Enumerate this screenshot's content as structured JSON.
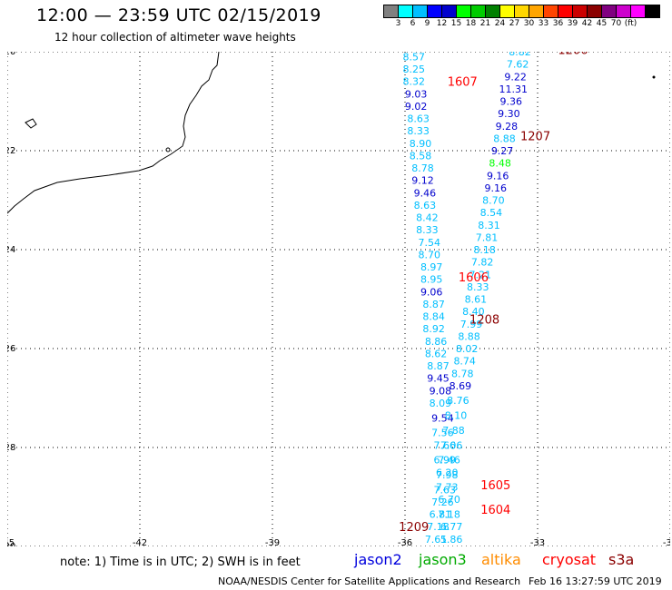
{
  "header": {
    "title": "12:00 — 23:59 UTC 02/15/2019",
    "subtitle": "12 hour collection of altimeter wave heights"
  },
  "color_legend": {
    "swatches": [
      "#808080",
      "#00ffff",
      "#00bfff",
      "#0000ff",
      "#0000cd",
      "#00ff00",
      "#00cc00",
      "#008000",
      "#ffff00",
      "#ffd700",
      "#ffa500",
      "#ff4500",
      "#ff0000",
      "#cc0000",
      "#8b0000",
      "#800080",
      "#cc00cc",
      "#ff00ff",
      "#000000"
    ],
    "labels": [
      "3",
      "6",
      "9",
      "12",
      "15",
      "18",
      "21",
      "24",
      "27",
      "30",
      "33",
      "36",
      "39",
      "42",
      "45",
      "70",
      "(ft)"
    ]
  },
  "footer": {
    "note": "note: 1) Time is in UTC; 2) SWH is in feet",
    "missions": [
      {
        "name": "jason2",
        "color": "#0000dd"
      },
      {
        "name": "jason3",
        "color": "#00aa00"
      },
      {
        "name": "altika",
        "color": "#ff8c00"
      },
      {
        "name": "cryosat",
        "color": "#ff0000"
      },
      {
        "name": "s3a",
        "color": "#8b0000"
      }
    ],
    "credit": "NOAA/NESDIS Center for Satellite Applications and Research",
    "timestamp": "Feb 16 13:27:59 UTC 2019"
  },
  "chart_data": {
    "type": "scatter",
    "x_range": [
      -45,
      -30
    ],
    "y_range": [
      -30,
      -20
    ],
    "x_ticks": [
      -45,
      -42,
      -39,
      -36,
      -33,
      -30
    ],
    "y_ticks": [
      -20,
      -22,
      -24,
      -26,
      -28,
      -30
    ],
    "grid": true,
    "points": [
      {
        "lon": -35.8,
        "lat": -20.1,
        "v": "8.57",
        "c": "#00bfff"
      },
      {
        "lon": -35.8,
        "lat": -20.35,
        "v": "8.25",
        "c": "#00bfff"
      },
      {
        "lon": -35.8,
        "lat": -20.6,
        "v": "8.32",
        "c": "#00bfff"
      },
      {
        "lon": -35.75,
        "lat": -20.85,
        "v": "9.03",
        "c": "#0000cd"
      },
      {
        "lon": -35.75,
        "lat": -21.1,
        "v": "9.02",
        "c": "#0000cd"
      },
      {
        "lon": -35.7,
        "lat": -21.35,
        "v": "8.63",
        "c": "#00bfff"
      },
      {
        "lon": -35.7,
        "lat": -21.6,
        "v": "8.33",
        "c": "#00bfff"
      },
      {
        "lon": -35.65,
        "lat": -21.85,
        "v": "8.90",
        "c": "#00bfff"
      },
      {
        "lon": -35.65,
        "lat": -22.1,
        "v": "8.58",
        "c": "#00bfff"
      },
      {
        "lon": -35.6,
        "lat": -22.35,
        "v": "8.78",
        "c": "#00bfff"
      },
      {
        "lon": -35.6,
        "lat": -22.6,
        "v": "9.12",
        "c": "#0000cd"
      },
      {
        "lon": -35.55,
        "lat": -22.85,
        "v": "9.46",
        "c": "#0000cd"
      },
      {
        "lon": -35.55,
        "lat": -23.1,
        "v": "8.63",
        "c": "#00bfff"
      },
      {
        "lon": -35.5,
        "lat": -23.35,
        "v": "8.42",
        "c": "#00bfff"
      },
      {
        "lon": -35.5,
        "lat": -23.6,
        "v": "8.33",
        "c": "#00bfff"
      },
      {
        "lon": -35.45,
        "lat": -23.85,
        "v": "7.54",
        "c": "#00bfff"
      },
      {
        "lon": -35.45,
        "lat": -24.1,
        "v": "8.70",
        "c": "#00bfff"
      },
      {
        "lon": -35.4,
        "lat": -24.35,
        "v": "8.97",
        "c": "#00bfff"
      },
      {
        "lon": -35.4,
        "lat": -24.6,
        "v": "8.95",
        "c": "#00bfff"
      },
      {
        "lon": -35.4,
        "lat": -24.85,
        "v": "9.06",
        "c": "#0000cd"
      },
      {
        "lon": -35.35,
        "lat": -25.1,
        "v": "8.87",
        "c": "#00bfff"
      },
      {
        "lon": -35.35,
        "lat": -25.35,
        "v": "8.84",
        "c": "#00bfff"
      },
      {
        "lon": -35.35,
        "lat": -25.6,
        "v": "8.92",
        "c": "#00bfff"
      },
      {
        "lon": -35.3,
        "lat": -25.85,
        "v": "8.86",
        "c": "#00bfff"
      },
      {
        "lon": -35.3,
        "lat": -26.1,
        "v": "8.62",
        "c": "#00bfff"
      },
      {
        "lon": -35.25,
        "lat": -26.35,
        "v": "8.87",
        "c": "#00bfff"
      },
      {
        "lon": -35.25,
        "lat": -26.6,
        "v": "9.45",
        "c": "#0000cd"
      },
      {
        "lon": -35.2,
        "lat": -26.85,
        "v": "9.08",
        "c": "#0000cd"
      },
      {
        "lon": -35.2,
        "lat": -27.1,
        "v": "8.09",
        "c": "#00bfff"
      },
      {
        "lon": -35.15,
        "lat": -27.4,
        "v": "9.54",
        "c": "#0000cd"
      },
      {
        "lon": -35.15,
        "lat": -27.7,
        "v": "7.56",
        "c": "#00bfff"
      },
      {
        "lon": -35.1,
        "lat": -27.95,
        "v": "7.66",
        "c": "#00bfff"
      },
      {
        "lon": -35.1,
        "lat": -28.25,
        "v": "6.99",
        "c": "#00bfff"
      },
      {
        "lon": -35.05,
        "lat": -28.5,
        "v": "6.20",
        "c": "#00bfff"
      },
      {
        "lon": -35.05,
        "lat": -28.8,
        "v": "7.73",
        "c": "#00bfff"
      },
      {
        "lon": -35.0,
        "lat": -29.05,
        "v": "6.70",
        "c": "#00bfff"
      },
      {
        "lon": -35.0,
        "lat": -29.35,
        "v": "7.18",
        "c": "#00bfff"
      },
      {
        "lon": -34.95,
        "lat": -29.6,
        "v": "6.77",
        "c": "#00bfff"
      },
      {
        "lon": -34.95,
        "lat": -29.85,
        "v": "5.86",
        "c": "#00bfff"
      },
      {
        "lon": -34.9,
        "lat": -30.1,
        "v": "6.55",
        "c": "#00bfff"
      },
      {
        "lon": -34.9,
        "lat": -30.35,
        "v": "6.24",
        "c": "#00bfff"
      },
      {
        "lon": -34.85,
        "lat": -30.6,
        "v": "4.90",
        "c": "#00ffff"
      },
      {
        "lon": -34.85,
        "lat": -30.85,
        "v": "6.76",
        "c": "#00bfff"
      },
      {
        "lon": -33.4,
        "lat": -20.0,
        "v": "8.82",
        "c": "#00bfff"
      },
      {
        "lon": -33.45,
        "lat": -20.25,
        "v": "7.62",
        "c": "#00bfff"
      },
      {
        "lon": -33.5,
        "lat": -20.5,
        "v": "9.22",
        "c": "#0000cd"
      },
      {
        "lon": -33.55,
        "lat": -20.75,
        "v": "11.31",
        "c": "#0000cd"
      },
      {
        "lon": -33.6,
        "lat": -21.0,
        "v": "9.36",
        "c": "#0000cd"
      },
      {
        "lon": -33.65,
        "lat": -21.25,
        "v": "9.30",
        "c": "#0000cd"
      },
      {
        "lon": -33.7,
        "lat": -21.5,
        "v": "9.28",
        "c": "#0000cd"
      },
      {
        "lon": -33.75,
        "lat": -21.75,
        "v": "8.88",
        "c": "#00bfff"
      },
      {
        "lon": -33.8,
        "lat": -22.0,
        "v": "9.27",
        "c": "#0000cd"
      },
      {
        "lon": -33.85,
        "lat": -22.25,
        "v": "8.48",
        "c": "#00ff00"
      },
      {
        "lon": -33.9,
        "lat": -22.5,
        "v": "9.16",
        "c": "#0000cd"
      },
      {
        "lon": -33.95,
        "lat": -22.75,
        "v": "9.16",
        "c": "#0000cd"
      },
      {
        "lon": -34.0,
        "lat": -23.0,
        "v": "8.70",
        "c": "#00bfff"
      },
      {
        "lon": -34.05,
        "lat": -23.25,
        "v": "8.54",
        "c": "#00bfff"
      },
      {
        "lon": -34.1,
        "lat": -23.5,
        "v": "8.31",
        "c": "#00bfff"
      },
      {
        "lon": -34.15,
        "lat": -23.75,
        "v": "7.81",
        "c": "#00bfff"
      },
      {
        "lon": -34.2,
        "lat": -24.0,
        "v": "8.18",
        "c": "#00bfff"
      },
      {
        "lon": -34.25,
        "lat": -24.25,
        "v": "7.82",
        "c": "#00bfff"
      },
      {
        "lon": -34.3,
        "lat": -24.5,
        "v": "7.21",
        "c": "#00bfff"
      },
      {
        "lon": -34.35,
        "lat": -24.75,
        "v": "8.33",
        "c": "#00bfff"
      },
      {
        "lon": -34.4,
        "lat": -25.0,
        "v": "8.61",
        "c": "#00bfff"
      },
      {
        "lon": -34.45,
        "lat": -25.25,
        "v": "8.40",
        "c": "#00bfff"
      },
      {
        "lon": -34.5,
        "lat": -25.5,
        "v": "7.99",
        "c": "#00bfff"
      },
      {
        "lon": -34.55,
        "lat": -25.75,
        "v": "8.88",
        "c": "#00bfff"
      },
      {
        "lon": -34.6,
        "lat": -26.0,
        "v": "8.02",
        "c": "#00bfff"
      },
      {
        "lon": -34.65,
        "lat": -26.25,
        "v": "8.74",
        "c": "#00bfff"
      },
      {
        "lon": -34.7,
        "lat": -26.5,
        "v": "8.78",
        "c": "#00bfff"
      },
      {
        "lon": -34.75,
        "lat": -26.75,
        "v": "8.69",
        "c": "#0000cd"
      },
      {
        "lon": -34.8,
        "lat": -27.05,
        "v": "8.76",
        "c": "#00bfff"
      },
      {
        "lon": -34.85,
        "lat": -27.35,
        "v": "8.10",
        "c": "#00bfff"
      },
      {
        "lon": -34.9,
        "lat": -27.65,
        "v": "7.88",
        "c": "#00bfff"
      },
      {
        "lon": -34.95,
        "lat": -27.95,
        "v": "7.06",
        "c": "#00bfff"
      },
      {
        "lon": -35.0,
        "lat": -28.25,
        "v": "7.46",
        "c": "#00bfff"
      },
      {
        "lon": -35.05,
        "lat": -28.55,
        "v": "7.98",
        "c": "#00bfff"
      },
      {
        "lon": -35.1,
        "lat": -28.85,
        "v": "7.63",
        "c": "#00bfff"
      },
      {
        "lon": -35.15,
        "lat": -29.1,
        "v": "7.26",
        "c": "#00bfff"
      },
      {
        "lon": -35.2,
        "lat": -29.35,
        "v": "6.81",
        "c": "#00bfff"
      },
      {
        "lon": -35.25,
        "lat": -29.6,
        "v": "7.18",
        "c": "#00bfff"
      },
      {
        "lon": -35.3,
        "lat": -29.85,
        "v": "7.61",
        "c": "#00bfff"
      },
      {
        "lon": -35.35,
        "lat": -30.1,
        "v": "7.24",
        "c": "#00bfff"
      },
      {
        "lon": -35.4,
        "lat": -30.35,
        "v": "7.02",
        "c": "#00bfff"
      },
      {
        "lon": -35.45,
        "lat": -30.6,
        "v": "6.47",
        "c": "#00bfff"
      },
      {
        "lon": -35.5,
        "lat": -30.85,
        "v": "6.79",
        "c": "#00bfff"
      },
      {
        "lon": -35.55,
        "lat": -31.1,
        "v": "6.87",
        "c": "#00bfff"
      }
    ],
    "time_labels": [
      {
        "lon": -32.2,
        "lat": -19.95,
        "t": "1206",
        "c": "#8b0000"
      },
      {
        "lon": -34.7,
        "lat": -20.6,
        "t": "1607",
        "c": "#ff0000"
      },
      {
        "lon": -33.05,
        "lat": -21.7,
        "t": "1207",
        "c": "#8b0000"
      },
      {
        "lon": -34.45,
        "lat": -24.55,
        "t": "1606",
        "c": "#ff0000"
      },
      {
        "lon": -34.2,
        "lat": -25.4,
        "t": "1208",
        "c": "#8b0000"
      },
      {
        "lon": -33.95,
        "lat": -28.75,
        "t": "1605",
        "c": "#ff0000"
      },
      {
        "lon": -33.95,
        "lat": -29.25,
        "t": "1604",
        "c": "#ff0000"
      },
      {
        "lon": -35.8,
        "lat": -29.6,
        "t": "1209",
        "c": "#8b0000"
      },
      {
        "lon": -33.75,
        "lat": -30.85,
        "t": "1604",
        "c": "#ff0000"
      }
    ]
  }
}
